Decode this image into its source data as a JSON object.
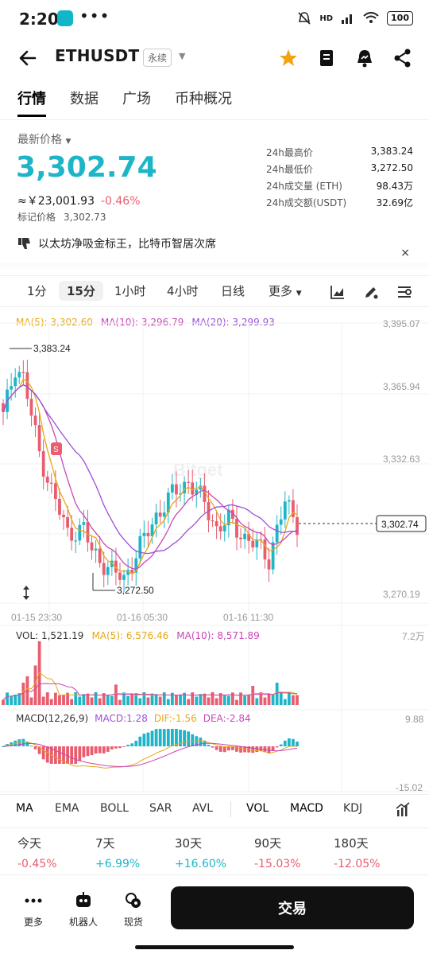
{
  "status": {
    "time": "2:20",
    "dots": "•••",
    "net": "HD",
    "battery": "100"
  },
  "header": {
    "symbol": "ETHUSDT",
    "perp_label": "永续"
  },
  "tabs": [
    "行情",
    "数据",
    "广场",
    "币种概况"
  ],
  "price": {
    "label": "最新价格",
    "last": "3,302.74",
    "cny": "≈￥23,001.93",
    "change_pct": "-0.46%",
    "mark_label": "标记价格",
    "mark": "3,302.73"
  },
  "stats": [
    {
      "k": "24h最高价",
      "v": "3,383.24"
    },
    {
      "k": "24h最低价",
      "v": "3,272.50"
    },
    {
      "k": "24h成交量 (ETH)",
      "v": "98.43万"
    },
    {
      "k": "24h成交额(USDT)",
      "v": "32.69亿"
    }
  ],
  "news": {
    "text": "以太坊净吸金标王，比特币智居次席",
    "close": "×"
  },
  "intervals": [
    "1分",
    "15分",
    "1小时",
    "4小时",
    "日线",
    "更多"
  ],
  "chart": {
    "ma_legend": [
      {
        "text": "MA(5): 3,302.60",
        "color": "#e6a817"
      },
      {
        "text": "MA(10): 3,296.79",
        "color": "#c946b6"
      },
      {
        "text": "MA(20): 3,299.93",
        "color": "#9b4fd6"
      }
    ],
    "y_ticks": [
      "3,395.07",
      "3,365.94",
      "3,332.63",
      "3,270.19"
    ],
    "high_label": "3,383.24",
    "low_label": "3,272.50",
    "last_label": "3,302.74",
    "x_ticks": [
      "01-15 23:30",
      "01-16 05:30",
      "01-16 11:30"
    ],
    "watermark": "Bitget",
    "sell_marker": "S"
  },
  "volume": {
    "legend": [
      {
        "text": "VOL: 1,521.19",
        "color": "#333"
      },
      {
        "text": "MA(5): 6,576.46",
        "color": "#e6a817"
      },
      {
        "text": "MA(10): 8,571.89",
        "color": "#c946b6"
      }
    ],
    "y_top": "7.2万"
  },
  "macd": {
    "legend": [
      {
        "text": "MACD(12,26,9)",
        "color": "#333"
      },
      {
        "text": "MACD:1.28",
        "color": "#9b4fd6"
      },
      {
        "text": "DIF:-1.56",
        "color": "#e6a817"
      },
      {
        "text": "DEA:-2.84",
        "color": "#c946b6"
      }
    ],
    "y_top": "9.88",
    "y_bottom": "-15.02"
  },
  "indicators": [
    "MA",
    "EMA",
    "BOLL",
    "SAR",
    "AVL",
    "VOL",
    "MACD",
    "KDJ"
  ],
  "performance": [
    {
      "label": "今天",
      "value": "-0.45%"
    },
    {
      "label": "7天",
      "value": "+6.99%"
    },
    {
      "label": "30天",
      "value": "+16.60%"
    },
    {
      "label": "90天",
      "value": "-15.03%"
    },
    {
      "label": "180天",
      "value": "-12.05%"
    }
  ],
  "bottom": {
    "more": "更多",
    "robot": "机器人",
    "spot": "现货",
    "trade": "交易"
  },
  "colors": {
    "up": "#1fb5c8",
    "down": "#e85d6f"
  }
}
